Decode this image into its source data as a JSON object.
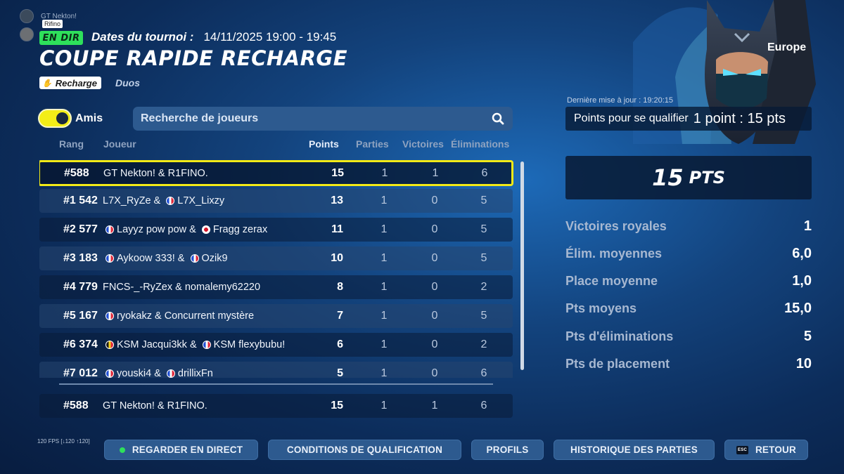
{
  "party": {
    "members": [
      {
        "name": "GT Nekton!"
      },
      {
        "name": "Rifino"
      }
    ]
  },
  "event": {
    "badge": "EN DIR",
    "dates_label": "Dates du tournoi :",
    "dates_value": "14/11/2025 19:00 - 19:45",
    "title": "COUPE RAPIDE RECHARGE",
    "mode": "Recharge",
    "team_size": "Duos",
    "region": "Europe"
  },
  "filters": {
    "friends_label": "Amis",
    "friends_on": true,
    "search_placeholder": "Recherche de joueurs"
  },
  "columns": {
    "rank": "Rang",
    "player": "Joueur",
    "points": "Points",
    "games": "Parties",
    "wins": "Victoires",
    "elims": "Éliminations"
  },
  "rows": [
    {
      "rank": "#588",
      "p1": "GT Nekton!",
      "p1_flag": "",
      "sep": " & ",
      "p2": "R1FINO.",
      "p2_flag": "",
      "points": "15",
      "games": "1",
      "wins": "1",
      "elims": "6"
    },
    {
      "rank": "#1 542",
      "p1": "L7X_RyZe",
      "p1_flag": "",
      "sep": " & ",
      "p2": "L7X_Lixzy",
      "p2_flag": "fr",
      "points": "13",
      "games": "1",
      "wins": "0",
      "elims": "5"
    },
    {
      "rank": "#2 577",
      "p1": "Layyz pow pow",
      "p1_flag": "fr",
      "sep": " & ",
      "p2": "Fragg zerax",
      "p2_flag": "jp",
      "points": "11",
      "games": "1",
      "wins": "0",
      "elims": "5"
    },
    {
      "rank": "#3 183",
      "p1": "Aykoow 333!",
      "p1_flag": "fr",
      "sep": " & ",
      "p2": "Ozik9",
      "p2_flag": "fr",
      "points": "10",
      "games": "1",
      "wins": "0",
      "elims": "5"
    },
    {
      "rank": "#4 779",
      "p1": "FNCS-_-RyZex",
      "p1_flag": "",
      "sep": " & ",
      "p2": "nomalemy62220",
      "p2_flag": "",
      "points": "8",
      "games": "1",
      "wins": "0",
      "elims": "2"
    },
    {
      "rank": "#5 167",
      "p1": "ryokakz",
      "p1_flag": "fr",
      "sep": " & ",
      "p2": "Concurrent mystère",
      "p2_flag": "",
      "points": "7",
      "games": "1",
      "wins": "0",
      "elims": "5"
    },
    {
      "rank": "#6 374",
      "p1": "KSM Jacqui3kk",
      "p1_flag": "be",
      "sep": " & ",
      "p2": "KSM flexybubu!",
      "p2_flag": "fr",
      "points": "6",
      "games": "1",
      "wins": "0",
      "elims": "2"
    },
    {
      "rank": "#7 012",
      "p1": "youski4",
      "p1_flag": "fr",
      "sep": " & ",
      "p2": "drillixFn",
      "p2_flag": "fr",
      "points": "5",
      "games": "1",
      "wins": "0",
      "elims": "6"
    }
  ],
  "my_row": {
    "rank": "#588",
    "players": "GT Nekton! & R1FINO.",
    "points": "15",
    "games": "1",
    "wins": "1",
    "elims": "6"
  },
  "summary": {
    "updated": "Dernière mise à jour : 19:20:15",
    "qualify_label": "Points pour se qualifier",
    "qualify_value": "1 point : 15 pts",
    "score": "15",
    "score_unit": "PTS",
    "stats": [
      {
        "label": "Victoires royales",
        "value": "1"
      },
      {
        "label": "Élim. moyennes",
        "value": "6,0"
      },
      {
        "label": "Place moyenne",
        "value": "1,0"
      },
      {
        "label": "Pts moyens",
        "value": "15,0"
      },
      {
        "label": "Pts d'éliminations",
        "value": "5"
      },
      {
        "label": "Pts de placement",
        "value": "10"
      }
    ]
  },
  "footer": {
    "fps": "120 FPS [↓120 ↑120]",
    "buttons": [
      "REGARDER EN DIRECT",
      "CONDITIONS DE QUALIFICATION",
      "PROFILS",
      "HISTORIQUE DES PARTIES",
      "RETOUR"
    ],
    "esc_key": "ESC"
  },
  "colors": {
    "highlight": "#f2ea17",
    "live": "#2ee05b",
    "panel": "#2d5a8f"
  }
}
